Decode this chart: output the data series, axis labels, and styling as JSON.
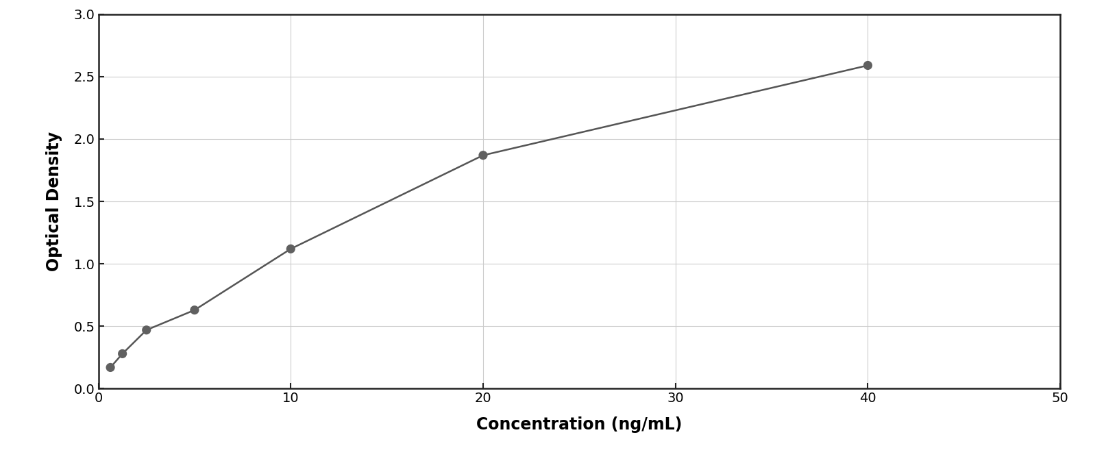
{
  "x_data": [
    0.625,
    1.25,
    2.5,
    5,
    10,
    20,
    40
  ],
  "y_data": [
    0.17,
    0.28,
    0.47,
    0.63,
    1.12,
    1.87,
    2.59
  ],
  "point_color": "#606060",
  "line_color": "#555555",
  "xlabel": "Concentration (ng/mL)",
  "ylabel": "Optical Density",
  "xlim": [
    0,
    50
  ],
  "ylim": [
    0,
    3
  ],
  "xticks": [
    0,
    10,
    20,
    30,
    40,
    50
  ],
  "yticks": [
    0,
    0.5,
    1.0,
    1.5,
    2.0,
    2.5,
    3.0
  ],
  "xlabel_fontsize": 17,
  "ylabel_fontsize": 17,
  "tick_fontsize": 14,
  "point_size": 90,
  "background_color": "#ffffff",
  "grid_color": "#cccccc",
  "border_color": "#222222",
  "curve_x_end": 40
}
